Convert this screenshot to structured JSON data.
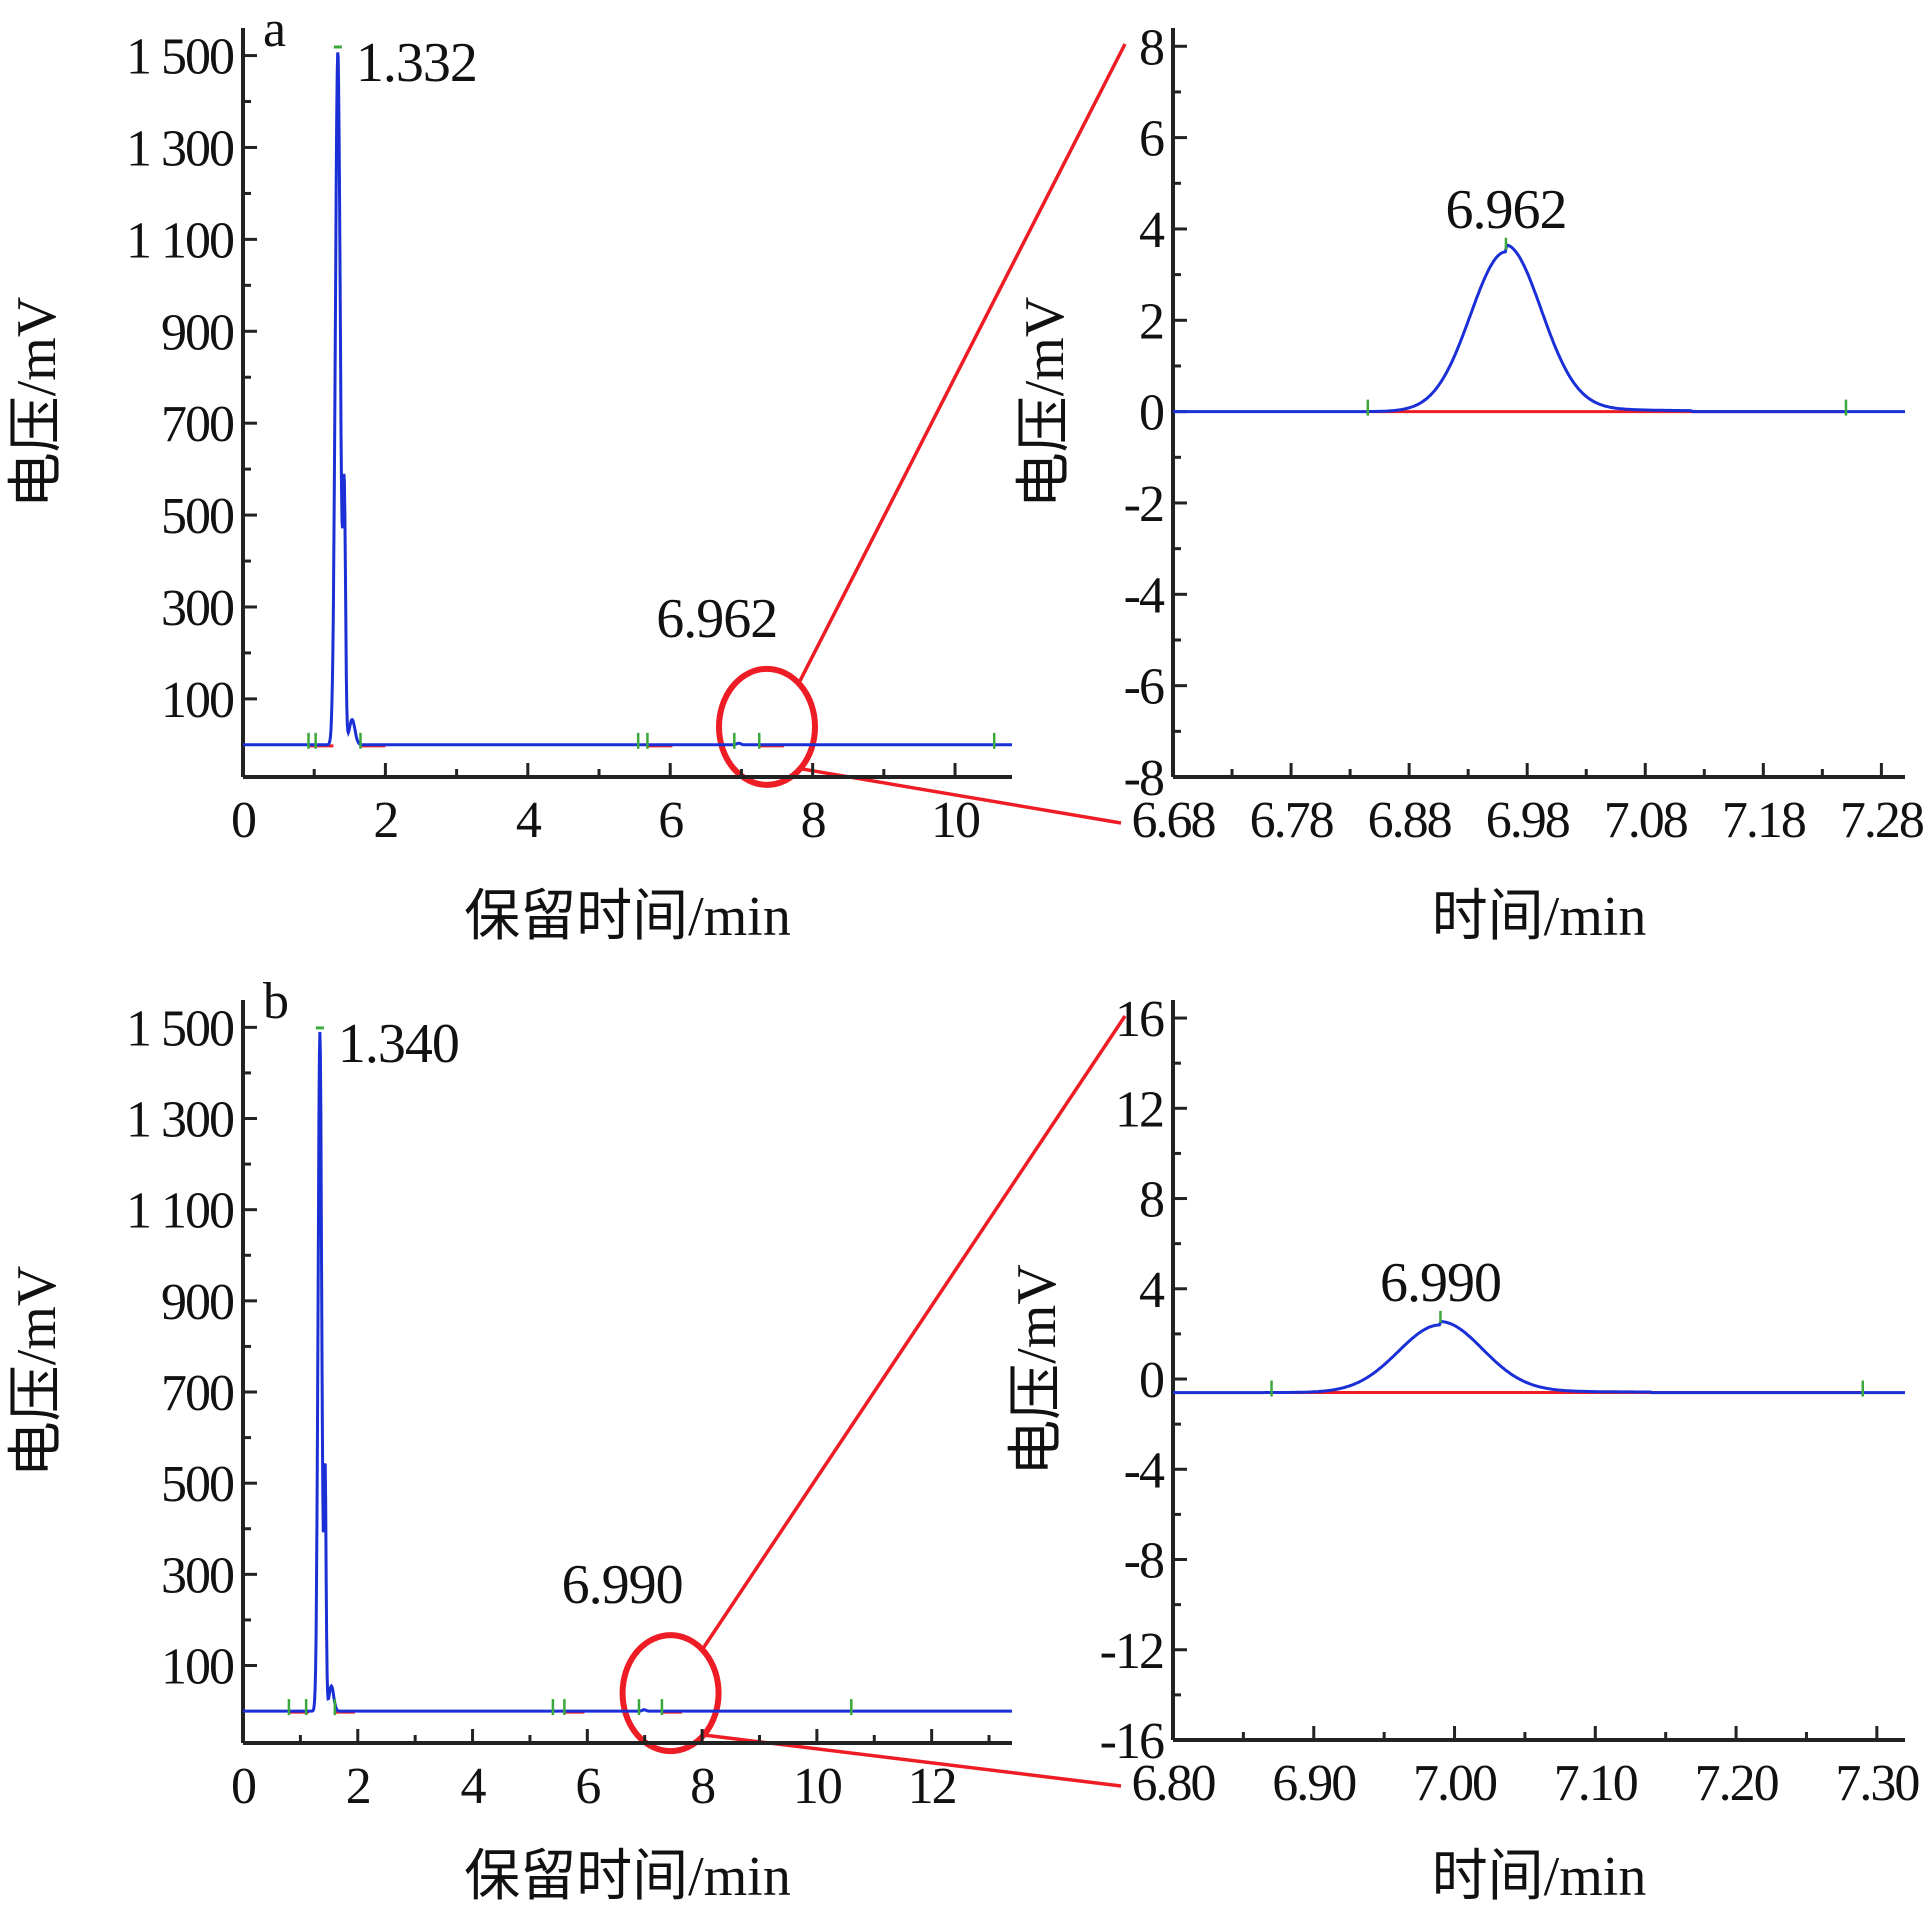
{
  "colors": {
    "signal": "#1a2fd6",
    "baseline": "#ee1c24",
    "marker": "#3aa83a",
    "zoom": "#ee1c24",
    "axis": "#222222"
  },
  "chart_data": [
    {
      "id": "a-main",
      "type": "line",
      "panel_letter": "a",
      "xlabel": "保留时间/min",
      "ylabel": "电压/mV",
      "xlim": [
        0,
        10.8
      ],
      "ylim": [
        -70,
        1560
      ],
      "x_ticks": [
        0,
        2,
        4,
        6,
        8,
        10
      ],
      "x_tick_labels": [
        "0",
        "2",
        "4",
        "6",
        "8",
        "10"
      ],
      "y_ticks": [
        100,
        300,
        500,
        700,
        900,
        1100,
        1300,
        1500
      ],
      "y_tick_labels": [
        "100",
        "300",
        "500",
        "700",
        "900",
        "1 100",
        "1 300",
        "1 500"
      ],
      "baseline": 0,
      "peaks": [
        {
          "label": "1.332",
          "rt": 1.332,
          "height": 1510,
          "width": 0.035
        },
        {
          "label": "6.962",
          "rt": 6.962,
          "height": 3.5,
          "width": 0.03
        }
      ],
      "zoom_region": {
        "x": [
          6.68,
          7.28
        ],
        "y": [
          -8,
          8
        ]
      },
      "markers_x": [
        0.92,
        1.02,
        1.65,
        5.55,
        5.68,
        6.9,
        7.25,
        10.55
      ]
    },
    {
      "id": "a-zoom",
      "type": "line",
      "xlabel": "时间/min",
      "ylabel": "电压/mV",
      "xlim": [
        6.68,
        7.3
      ],
      "ylim": [
        -8,
        8.4
      ],
      "x_ticks": [
        6.68,
        6.78,
        6.88,
        6.98,
        7.08,
        7.18,
        7.28
      ],
      "x_tick_labels": [
        "6.68",
        "6.78",
        "6.88",
        "6.98",
        "7.08",
        "7.18",
        "7.28"
      ],
      "y_ticks": [
        -8,
        -6,
        -4,
        -2,
        0,
        2,
        4,
        6,
        8
      ],
      "y_tick_labels": [
        "-8",
        "-6",
        "-4",
        "-2",
        "0",
        "2",
        "4",
        "6",
        "8"
      ],
      "baseline": 0,
      "peaks": [
        {
          "label": "6.962",
          "rt": 6.962,
          "height": 3.5,
          "width": 0.03
        }
      ],
      "integration_range": [
        6.845,
        7.12
      ],
      "markers_x": [
        6.845,
        7.25
      ]
    },
    {
      "id": "b-main",
      "type": "line",
      "panel_letter": "b",
      "xlabel": "保留时间/min",
      "ylabel": "电压/mV",
      "xlim": [
        0,
        13.4
      ],
      "ylim": [
        -70,
        1560
      ],
      "x_ticks": [
        0,
        2,
        4,
        6,
        8,
        10,
        12
      ],
      "x_tick_labels": [
        "0",
        "2",
        "4",
        "6",
        "8",
        "10",
        "12"
      ],
      "y_ticks": [
        100,
        300,
        500,
        700,
        900,
        1100,
        1300,
        1500
      ],
      "y_tick_labels": [
        "100",
        "300",
        "500",
        "700",
        "900",
        "1 100",
        "1 300",
        "1 500"
      ],
      "baseline": 0,
      "peaks": [
        {
          "label": "1.340",
          "rt": 1.34,
          "height": 1490,
          "width": 0.032
        },
        {
          "label": "6.990",
          "rt": 6.99,
          "height": 3.0,
          "width": 0.03
        }
      ],
      "zoom_region": {
        "x": [
          6.8,
          7.3
        ],
        "y": [
          -16,
          16
        ]
      },
      "markers_x": [
        0.8,
        1.1,
        1.6,
        5.4,
        5.6,
        6.9,
        7.3,
        10.6
      ]
    },
    {
      "id": "b-zoom",
      "type": "line",
      "xlabel": "时间/min",
      "ylabel": "电压/mV",
      "xlim": [
        6.8,
        7.32
      ],
      "ylim": [
        -16,
        16.8
      ],
      "x_ticks": [
        6.8,
        6.9,
        7.0,
        7.1,
        7.2,
        7.3
      ],
      "x_tick_labels": [
        "6.80",
        "6.90",
        "7.00",
        "7.10",
        "7.20",
        "7.30"
      ],
      "y_ticks": [
        -16,
        -12,
        -8,
        -4,
        0,
        4,
        8,
        12,
        16
      ],
      "y_tick_labels": [
        "-16",
        "-12",
        "-8",
        "-4",
        "0",
        "4",
        "8",
        "12",
        "16"
      ],
      "baseline": -0.6,
      "peaks": [
        {
          "label": "6.990",
          "rt": 6.99,
          "height": 3.0,
          "width": 0.03
        }
      ],
      "integration_range": [
        6.87,
        7.14
      ],
      "markers_x": [
        6.87,
        7.29
      ]
    }
  ]
}
